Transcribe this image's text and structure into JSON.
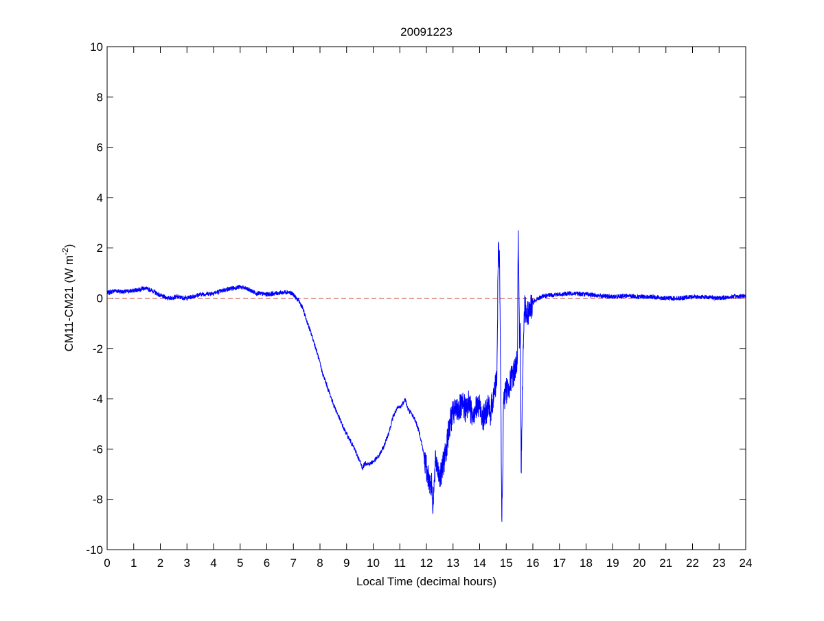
{
  "chart_data": {
    "type": "line",
    "title": "20091223",
    "xlabel": "Local Time (decimal hours)",
    "ylabel": {
      "prefix": "CM11-CM21 (W m",
      "superscript": "-2",
      "suffix": ")"
    },
    "xlim": [
      0,
      24
    ],
    "ylim": [
      -10,
      10
    ],
    "x_ticks": [
      0,
      1,
      2,
      3,
      4,
      5,
      6,
      7,
      8,
      9,
      10,
      11,
      12,
      13,
      14,
      15,
      16,
      17,
      18,
      19,
      20,
      21,
      22,
      23,
      24
    ],
    "x_tick_labels": [
      "0",
      "1",
      "2",
      "3",
      "4",
      "5",
      "6",
      "7",
      "8",
      "9",
      "10",
      "11",
      "12",
      "13",
      "14",
      "15",
      "16",
      "17",
      "18",
      "19",
      "20",
      "21",
      "22",
      "23",
      "24"
    ],
    "y_ticks": [
      -10,
      -8,
      -6,
      -4,
      -2,
      0,
      2,
      4,
      6,
      8,
      10
    ],
    "y_tick_labels": [
      "-10",
      "-8",
      "-6",
      "-4",
      "-2",
      "0",
      "2",
      "4",
      "6",
      "8",
      "10"
    ],
    "grid": false,
    "reference_line": {
      "y": 0,
      "color": "#c0392b",
      "style": "dashed"
    },
    "series": [
      {
        "color": "#0000ff",
        "x": [
          0.0,
          0.3,
          0.6,
          1.0,
          1.4,
          1.7,
          2.0,
          2.3,
          2.6,
          3.0,
          3.5,
          4.0,
          4.5,
          5.0,
          5.3,
          5.6,
          6.0,
          6.4,
          6.8,
          7.0,
          7.1,
          7.2,
          7.35,
          7.5,
          7.7,
          7.9,
          8.1,
          8.3,
          8.5,
          8.7,
          8.9,
          9.1,
          9.3,
          9.5,
          9.6,
          9.7,
          9.85,
          10.0,
          10.2,
          10.4,
          10.6,
          10.75,
          10.9,
          11.05,
          11.2,
          11.3,
          11.45,
          11.6,
          11.75,
          11.9,
          12.0,
          12.1,
          12.2,
          12.25,
          12.3,
          12.35,
          12.45,
          12.55,
          12.65,
          12.8,
          12.9,
          13.0,
          13.2,
          13.4,
          13.5,
          13.6,
          13.7,
          13.85,
          14.0,
          14.15,
          14.3,
          14.4,
          14.5,
          14.55,
          14.65,
          14.7,
          14.75,
          14.8,
          14.83,
          14.86,
          14.9,
          15.0,
          15.1,
          15.2,
          15.3,
          15.35,
          15.42,
          15.45,
          15.5,
          15.53,
          15.56,
          15.6,
          15.65,
          15.7,
          15.75,
          15.85,
          16.0,
          16.2,
          16.5,
          17.0,
          17.5,
          18.0,
          18.5,
          19.0,
          19.5,
          20.0,
          20.5,
          21.0,
          21.5,
          22.0,
          22.5,
          23.0,
          23.5,
          24.0
        ],
        "y": [
          0.2,
          0.3,
          0.25,
          0.3,
          0.4,
          0.3,
          0.1,
          0.0,
          0.05,
          0.0,
          0.15,
          0.2,
          0.35,
          0.45,
          0.35,
          0.2,
          0.15,
          0.2,
          0.25,
          0.15,
          0.0,
          -0.1,
          -0.4,
          -0.9,
          -1.5,
          -2.2,
          -3.0,
          -3.6,
          -4.2,
          -4.7,
          -5.2,
          -5.6,
          -6.0,
          -6.5,
          -6.75,
          -6.55,
          -6.6,
          -6.5,
          -6.3,
          -5.9,
          -5.3,
          -4.7,
          -4.4,
          -4.3,
          -4.0,
          -4.4,
          -4.6,
          -4.9,
          -5.4,
          -6.2,
          -6.8,
          -7.2,
          -7.5,
          -8.2,
          -7.3,
          -6.4,
          -6.9,
          -7.1,
          -6.5,
          -5.6,
          -4.9,
          -4.6,
          -4.4,
          -4.3,
          -4.5,
          -4.1,
          -4.6,
          -4.4,
          -4.3,
          -4.8,
          -4.3,
          -4.6,
          -4.0,
          -3.8,
          -3.0,
          2.0,
          1.3,
          -4.3,
          -8.7,
          -7.5,
          -4.0,
          -3.7,
          -3.5,
          -3.2,
          -2.9,
          -2.7,
          -2.4,
          2.7,
          -2.0,
          -1.4,
          -6.9,
          -3.8,
          -1.6,
          -0.1,
          -0.6,
          -0.5,
          -0.2,
          0.0,
          0.1,
          0.15,
          0.2,
          0.15,
          0.1,
          0.05,
          0.1,
          0.05,
          0.05,
          0.0,
          0.0,
          0.05,
          0.05,
          0.0,
          0.05,
          0.1
        ]
      }
    ]
  }
}
